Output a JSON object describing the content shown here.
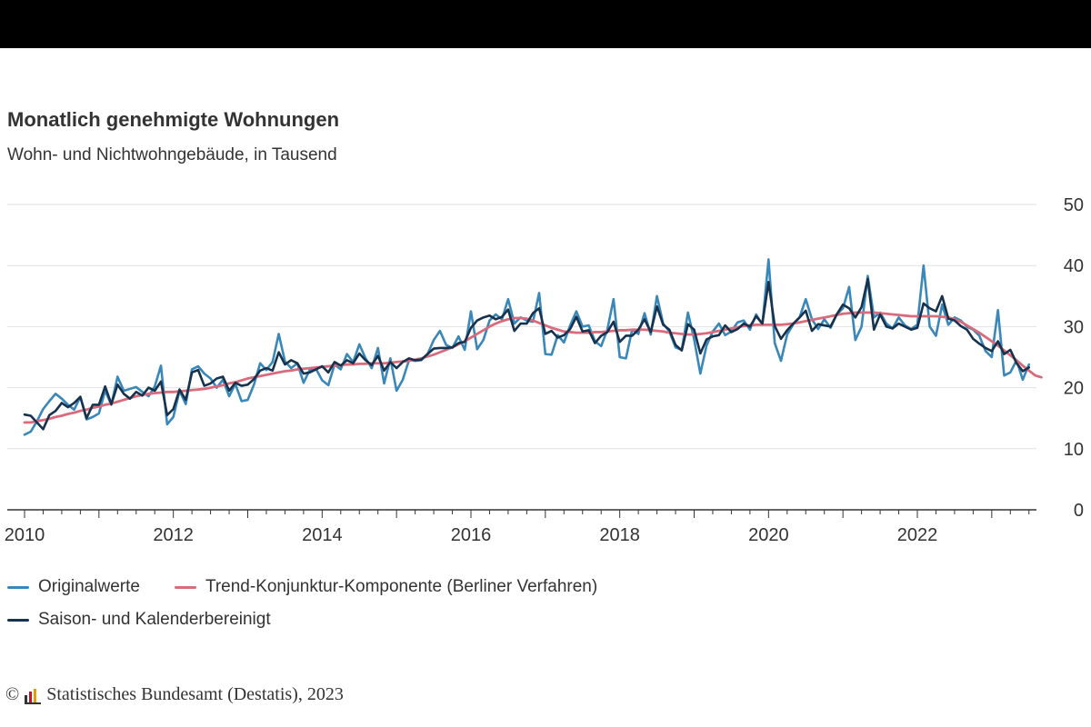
{
  "title": "Monatlich genehmigte Wohnungen",
  "subtitle": "Wohn- und Nichtwohngebäude, in Tausend",
  "footer": {
    "copyright": "©",
    "source": "Statistisches Bundesamt (Destatis), 2023"
  },
  "chart_data": {
    "type": "line",
    "title": "Monatlich genehmigte Wohnungen",
    "subtitle": "Wohn- und Nichtwohngebäude, in Tausend",
    "xlabel": "",
    "ylabel": "",
    "x_ticks": [
      "2010",
      "2012",
      "2014",
      "2016",
      "2018",
      "2020",
      "2022"
    ],
    "x_tick_values": [
      2010,
      2012,
      2014,
      2016,
      2018,
      2020,
      2022
    ],
    "y_ticks": [
      "0",
      "10",
      "20",
      "30",
      "40",
      "50"
    ],
    "y_tick_values": [
      0,
      10,
      20,
      30,
      40,
      50
    ],
    "ylim": [
      0,
      50
    ],
    "xlim": [
      2009.8,
      2023.55
    ],
    "y_axis_position": "right",
    "grid": true,
    "legend_position": "bottom",
    "x_start": "2010-01",
    "interval": "monthly",
    "series": [
      {
        "name": "Originalwerte",
        "color": "#3a87b9",
        "values": [
          12.3,
          12.8,
          14.5,
          16.5,
          17.8,
          19.0,
          18.2,
          17.2,
          16.4,
          18.5,
          14.8,
          15.2,
          15.8,
          19.5,
          17.2,
          21.8,
          19.5,
          19.8,
          20.1,
          19.3,
          18.6,
          20.2,
          23.6,
          14.0,
          15.2,
          19.5,
          17.3,
          23.0,
          23.5,
          22.3,
          21.5,
          20.0,
          21.3,
          18.6,
          20.6,
          17.8,
          18.0,
          20.5,
          24.0,
          22.9,
          24.2,
          28.8,
          24.3,
          23.2,
          24.0,
          20.8,
          22.9,
          23.1,
          21.2,
          20.4,
          23.8,
          23.0,
          25.5,
          24.2,
          27.1,
          24.8,
          23.2,
          26.5,
          20.7,
          24.8,
          19.5,
          21.3,
          24.5,
          24.4,
          24.5,
          25.5,
          27.8,
          29.3,
          27.0,
          26.5,
          28.4,
          26.2,
          32.5,
          26.3,
          27.8,
          31.0,
          32.0,
          31.2,
          34.5,
          30.5,
          31.5,
          31.0,
          30.8,
          35.5,
          25.5,
          25.4,
          28.6,
          27.4,
          30.2,
          32.5,
          30.0,
          30.2,
          27.6,
          26.8,
          29.5,
          34.5,
          25.0,
          24.8,
          29.5,
          28.8,
          32.2,
          28.7,
          35.0,
          30.5,
          29.2,
          26.6,
          26.2,
          32.3,
          27.9,
          22.3,
          26.9,
          29.2,
          30.5,
          28.6,
          29.2,
          30.7,
          31.0,
          29.5,
          32.0,
          30.3,
          41.0,
          27.3,
          24.4,
          28.7,
          30.4,
          31.5,
          34.5,
          31.2,
          29.6,
          31.2,
          29.8,
          32.0,
          33.0,
          36.5,
          27.8,
          30.0,
          38.3,
          31.5,
          32.3,
          30.5,
          29.7,
          31.5,
          30.2,
          29.6,
          30.3,
          40.0,
          30.0,
          28.5,
          33.6,
          30.3,
          31.5,
          31.0,
          30.0,
          29.5,
          28.5,
          26.0,
          25.0,
          32.7,
          22.0,
          22.5,
          24.5,
          21.3,
          23.8
        ],
        "legend_row": 1
      },
      {
        "name": "Trend-Konjunktur-Komponente (Berliner Verfahren)",
        "color": "#d96b7c",
        "values": [
          14.3,
          14.3,
          14.5,
          14.7,
          14.9,
          15.2,
          15.4,
          15.7,
          15.9,
          16.2,
          16.4,
          16.7,
          16.9,
          17.2,
          17.4,
          17.7,
          18.0,
          18.3,
          18.6,
          18.8,
          19.0,
          19.1,
          19.2,
          19.3,
          19.3,
          19.4,
          19.5,
          19.6,
          19.7,
          19.8,
          20.0,
          20.2,
          20.4,
          20.7,
          20.9,
          21.2,
          21.5,
          21.7,
          21.9,
          22.1,
          22.3,
          22.5,
          22.7,
          22.8,
          23.0,
          23.1,
          23.2,
          23.3,
          23.4,
          23.5,
          23.6,
          23.7,
          23.8,
          23.8,
          23.9,
          23.9,
          24.0,
          24.0,
          24.0,
          24.1,
          24.2,
          24.3,
          24.4,
          24.6,
          24.8,
          25.1,
          25.4,
          25.8,
          26.2,
          26.6,
          27.1,
          27.6,
          28.2,
          28.8,
          29.4,
          30.0,
          30.5,
          30.9,
          31.2,
          31.4,
          31.4,
          31.3,
          31.0,
          30.6,
          30.2,
          29.8,
          29.5,
          29.2,
          29.1,
          29.0,
          29.0,
          29.0,
          29.1,
          29.1,
          29.2,
          29.3,
          29.4,
          29.4,
          29.5,
          29.5,
          29.5,
          29.4,
          29.3,
          29.2,
          29.0,
          28.9,
          28.8,
          28.7,
          28.7,
          28.8,
          28.9,
          29.1,
          29.3,
          29.5,
          29.7,
          29.9,
          30.1,
          30.2,
          30.3,
          30.3,
          30.3,
          30.3,
          30.3,
          30.4,
          30.5,
          30.7,
          30.9,
          31.1,
          31.3,
          31.5,
          31.7,
          31.9,
          32.1,
          32.2,
          32.3,
          32.3,
          32.3,
          32.3,
          32.2,
          32.1,
          32.0,
          31.9,
          31.8,
          31.7,
          31.7,
          31.7,
          31.7,
          31.7,
          31.6,
          31.5,
          31.2,
          30.8,
          30.2,
          29.6,
          29.0,
          28.3,
          27.6,
          26.9,
          26.1,
          25.3,
          24.5,
          23.6,
          22.8,
          22.0,
          21.7
        ],
        "legend_row": 1
      },
      {
        "name": "Saison- und Kalenderbereinigt",
        "color": "#17324d",
        "values": [
          15.6,
          15.4,
          14.3,
          13.2,
          15.5,
          16.2,
          17.5,
          16.8,
          17.5,
          18.5,
          15.0,
          17.2,
          17.2,
          20.2,
          17.3,
          20.5,
          19.0,
          18.2,
          19.3,
          18.7,
          20.0,
          19.5,
          21.0,
          15.5,
          16.5,
          19.7,
          18.0,
          22.5,
          22.9,
          20.3,
          20.7,
          21.5,
          21.8,
          19.5,
          20.8,
          20.3,
          20.5,
          21.4,
          22.8,
          23.2,
          22.8,
          25.8,
          23.8,
          24.5,
          24.0,
          22.3,
          22.5,
          23.0,
          23.5,
          22.5,
          24.2,
          23.6,
          24.5,
          24.0,
          25.6,
          24.5,
          23.7,
          25.2,
          22.8,
          24.2,
          23.2,
          24.2,
          24.8,
          24.5,
          24.6,
          25.5,
          26.4,
          26.5,
          26.5,
          26.6,
          27.3,
          27.5,
          29.8,
          31.0,
          31.5,
          31.8,
          31.2,
          31.6,
          32.8,
          29.3,
          30.5,
          30.5,
          32.2,
          33.0,
          28.8,
          29.3,
          28.2,
          28.6,
          29.6,
          31.6,
          29.2,
          29.4,
          27.3,
          28.5,
          29.1,
          30.8,
          27.5,
          28.5,
          28.5,
          29.5,
          31.2,
          29.1,
          33.3,
          30.3,
          29.5,
          27.0,
          26.1,
          30.4,
          29.5,
          25.6,
          27.9,
          28.4,
          28.6,
          30.2,
          29.1,
          29.6,
          30.5,
          30.0,
          31.7,
          30.5,
          37.3,
          30.1,
          28.0,
          29.4,
          30.5,
          31.5,
          32.6,
          29.3,
          30.4,
          30.2,
          30.0,
          32.0,
          33.6,
          33.0,
          31.5,
          33.2,
          37.8,
          29.5,
          32.0,
          30.0,
          29.7,
          30.5,
          30.0,
          29.5,
          29.8,
          33.8,
          33.0,
          32.5,
          35.0,
          31.3,
          31.0,
          30.1,
          29.5,
          28.0,
          27.2,
          26.5,
          26.0,
          27.6,
          25.5,
          26.2,
          24.0,
          22.7,
          23.3
        ],
        "legend_row": 2
      }
    ]
  }
}
